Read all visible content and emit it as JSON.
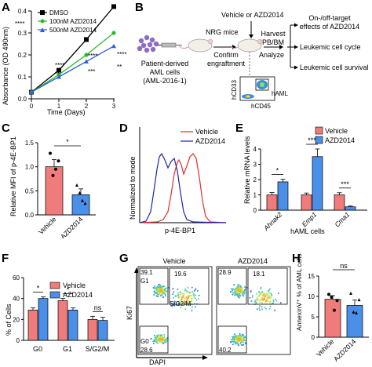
{
  "panels": {
    "A": {
      "letter": "A",
      "ylabel": "Absorbance (OD 490nm)",
      "xlabel": "Time (Days)",
      "yticks": [
        "0.0",
        "0.1",
        "0.2",
        "0.3",
        "0.4"
      ],
      "xticks": [
        "0",
        "1",
        "2",
        "3"
      ],
      "legend": [
        "DMSO",
        "100nM AZD2014",
        "500nM AZD2014"
      ],
      "sig_left": "****",
      "sig_day2_top": "****",
      "sig_day2_mid": "****",
      "sig_day2_low": "**",
      "sig_day2_low2": "***",
      "sig_day3_top": "****",
      "sig_day3_low": "**"
    },
    "B": {
      "letter": "B",
      "vehicle_label": "Vehicle or AZD2014",
      "nrg_label": "NRG mice",
      "patient_label": "Patient-derived",
      "aml_label": "AML cells",
      "aml_id": "(AML-2016-1)",
      "confirm1": "Confirm",
      "confirm2": "engraftment",
      "harvest1": "Harvest",
      "harvest2": "PB/BM",
      "analyze": "Analyze",
      "outcome1a": "On-/off-target",
      "outcome1b": "effects of AZD2014",
      "outcome2": "Leukemic cell cycle",
      "outcome3": "Leukemic cell survival",
      "flow_y": "hCD33",
      "flow_x": "hCD45",
      "flow_gate": "hAML"
    },
    "C": {
      "letter": "C",
      "ylabel": "Relative MFI of p-4E-BP1",
      "yticks": [
        "0.0",
        "0.5",
        "1.0",
        "1.5"
      ],
      "sig": "*",
      "categories": [
        "Vehicle",
        "AZD2014"
      ]
    },
    "D": {
      "letter": "D",
      "ylabel": "Normalized to mode",
      "xlabel": "p-4E-BP1",
      "legend": [
        "Vehicle",
        "AZD2014"
      ]
    },
    "E": {
      "letter": "E",
      "ylabel": "Relative mRNA levels",
      "xlabel": "hAML cells",
      "yticks": [
        "0",
        "1",
        "2",
        "3",
        "4"
      ],
      "legend": [
        "Vehicle",
        "AZD2014"
      ],
      "genes": [
        "Ahnak2",
        "Emp1",
        "Cma1"
      ],
      "sigs": [
        "*",
        "***",
        "***"
      ]
    },
    "F": {
      "letter": "F",
      "ylabel": "% of Cells",
      "yticks": [
        "0",
        "20",
        "40",
        "60"
      ],
      "legend": [
        "Vehicle",
        "AZD2014"
      ],
      "categories": [
        "G0",
        "G1",
        "S/G2/M"
      ],
      "sigs": [
        "*",
        "*",
        "ns"
      ]
    },
    "G": {
      "letter": "G",
      "ylabel": "Ki67",
      "xlabel": "DAPI",
      "plots": [
        {
          "title": "Vehicle",
          "q_tl": "39.1",
          "q_tr": "19.6",
          "q_bl": "28.6",
          "g1": "G1",
          "sg2m": "S/G2/M",
          "g0": "G0"
        },
        {
          "title": "AZD2014",
          "q_tl": "28.9",
          "q_tr": "18.1",
          "q_bl": "40.2"
        }
      ]
    },
    "H": {
      "letter": "H",
      "ylabel": "AnnexinV⁺ % of AML cells",
      "yticks": [
        "0",
        "5",
        "10",
        "15"
      ],
      "sig": "ns",
      "categories": [
        "Vehicle",
        "AZD2014"
      ]
    }
  },
  "colors": {
    "vehicle": "#ef7b7b",
    "azd": "#4a8fe8",
    "dmso": "#000000",
    "green": "#2db82d",
    "blue": "#2f5fe0",
    "red": "#e03030",
    "navy": "#2222aa"
  },
  "chart_data": [
    {
      "panel": "A",
      "type": "line",
      "x": [
        0,
        1,
        2,
        3
      ],
      "series": [
        {
          "name": "DMSO",
          "values": [
            0.03,
            0.13,
            0.27,
            0.42
          ]
        },
        {
          "name": "100nM AZD2014",
          "values": [
            0.03,
            0.11,
            0.2,
            0.3
          ]
        },
        {
          "name": "500nM AZD2014",
          "values": [
            0.03,
            0.1,
            0.17,
            0.24
          ]
        }
      ],
      "xlabel": "Time (Days)",
      "ylabel": "Absorbance (OD 490nm)",
      "ylim": [
        0,
        0.4
      ],
      "xlim": [
        0,
        3
      ]
    },
    {
      "panel": "C",
      "type": "bar",
      "categories": [
        "Vehicle",
        "AZD2014"
      ],
      "values": [
        1.0,
        0.42
      ],
      "errors": [
        0.15,
        0.12
      ],
      "points": [
        [
          1.28,
          0.82,
          0.95,
          1.12
        ],
        [
          0.62,
          0.46,
          0.3,
          0.24
        ]
      ],
      "ylabel": "Relative MFI of p-4E-BP1",
      "ylim": [
        0,
        1.5
      ]
    },
    {
      "panel": "E",
      "type": "bar",
      "categories": [
        "Ahnak2",
        "Emp1",
        "Cma1"
      ],
      "series": [
        {
          "name": "Vehicle",
          "values": [
            1.0,
            1.0,
            1.0
          ],
          "errors": [
            0.15,
            0.12,
            0.14
          ]
        },
        {
          "name": "AZD2014",
          "values": [
            1.85,
            3.5,
            0.22
          ],
          "errors": [
            0.18,
            0.5,
            0.05
          ]
        }
      ],
      "ylabel": "Relative mRNA levels",
      "xlabel": "hAML cells",
      "ylim": [
        0,
        4
      ]
    },
    {
      "panel": "F",
      "type": "bar",
      "categories": [
        "G0",
        "G1",
        "S/G2/M"
      ],
      "series": [
        {
          "name": "Vehicle",
          "values": [
            29,
            38,
            20
          ],
          "errors": [
            2,
            2,
            3
          ]
        },
        {
          "name": "AZD2014",
          "values": [
            40,
            29,
            19
          ],
          "errors": [
            1.5,
            2,
            3
          ]
        }
      ],
      "ylabel": "% of Cells",
      "ylim": [
        0,
        60
      ]
    },
    {
      "panel": "H",
      "type": "bar",
      "categories": [
        "Vehicle",
        "AZD2014"
      ],
      "values": [
        9.3,
        7.8
      ],
      "errors": [
        0.9,
        1.3
      ],
      "points": [
        [
          10.5,
          9.8,
          6.6,
          9.0
        ],
        [
          10.8,
          6.2,
          6.0,
          9.2
        ]
      ],
      "ylabel": "AnnexinV⁺ % of AML cells",
      "ylim": [
        0,
        15
      ]
    }
  ]
}
